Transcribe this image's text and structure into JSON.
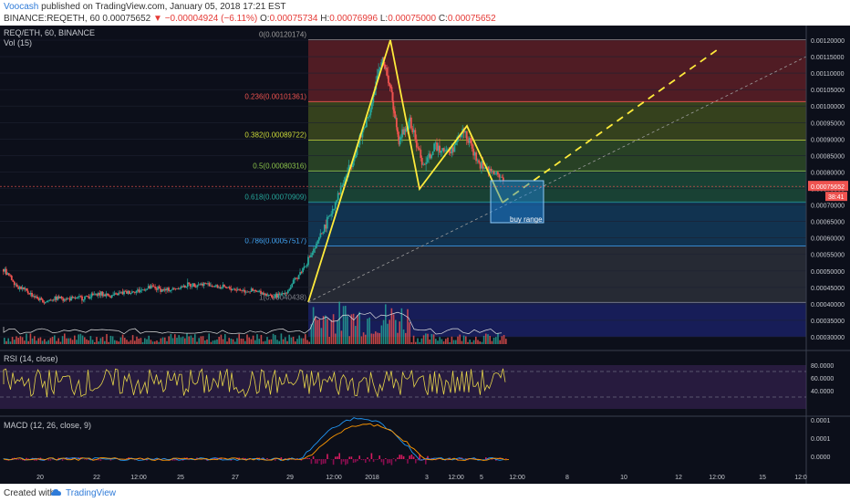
{
  "header": {
    "author": "Voocash",
    "published": "published on TradingView.com, January 05, 2018 17:21 EST",
    "symbol": "BINANCE:REQETH, 60",
    "last": "0.00075652",
    "arrow": "▼",
    "change": "−0.00004924 (−6.11%)",
    "o_label": "O:",
    "o": "0.00075734",
    "h_label": "H:",
    "h": "0.00076996",
    "l_label": "L:",
    "l": "0.00075000",
    "c_label": "C:",
    "c": "0.00075652"
  },
  "footer": {
    "created_with": "Created with",
    "brand": "TradingView"
  },
  "colors": {
    "up": "#26a69a",
    "down": "#ef5350",
    "bg": "#0c0f1a",
    "yellow": "#ffeb3b",
    "accent": "#2f7bd8"
  },
  "chart_data": {
    "type": "candlestick",
    "title": "REQ/ETH, 60, BINANCE",
    "volume_label": "Vol (15)",
    "price_axis_ticks": [
      "0.00120000",
      "0.00115000",
      "0.00110000",
      "0.00105000",
      "0.00100000",
      "0.00095000",
      "0.00090000",
      "0.00085000",
      "0.00080000",
      "0.00075000",
      "0.00070000",
      "0.00065000",
      "0.00060000",
      "0.00055000",
      "0.00050000",
      "0.00045000",
      "0.00040000",
      "0.00035000",
      "0.00030000"
    ],
    "last_price_label": "0.00075652",
    "countdown_label": "38:41",
    "time_axis_labels": [
      "20",
      "22",
      "12:00",
      "25",
      "27",
      "29",
      "12:00",
      "2018",
      "3",
      "12:00",
      "5",
      "12:00",
      "8",
      "10",
      "12",
      "12:00",
      "15",
      "12:0"
    ],
    "price_path": [
      {
        "t": 0,
        "p": 0.000505
      },
      {
        "t": 0.5,
        "p": 0.000455
      },
      {
        "t": 1,
        "p": 0.00043
      },
      {
        "t": 1.5,
        "p": 0.000405
      },
      {
        "t": 2,
        "p": 0.00042
      },
      {
        "t": 2.5,
        "p": 0.000415
      },
      {
        "t": 3,
        "p": 0.00042
      },
      {
        "t": 3.5,
        "p": 0.00043
      },
      {
        "t": 4,
        "p": 0.000425
      },
      {
        "t": 4.5,
        "p": 0.000435
      },
      {
        "t": 5,
        "p": 0.00044
      },
      {
        "t": 5.5,
        "p": 0.00045
      },
      {
        "t": 6,
        "p": 0.00044
      },
      {
        "t": 6.5,
        "p": 0.00045
      },
      {
        "t": 7,
        "p": 0.00046
      },
      {
        "t": 7.5,
        "p": 0.00046
      },
      {
        "t": 8,
        "p": 0.00045
      },
      {
        "t": 8.5,
        "p": 0.000445
      },
      {
        "t": 9,
        "p": 0.00044
      },
      {
        "t": 9.5,
        "p": 0.000435
      },
      {
        "t": 10,
        "p": 0.00042
      },
      {
        "t": 10.5,
        "p": 0.00044
      },
      {
        "t": 11,
        "p": 0.0005
      },
      {
        "t": 11.5,
        "p": 0.00057
      },
      {
        "t": 12,
        "p": 0.00066
      },
      {
        "t": 12.5,
        "p": 0.00076
      },
      {
        "t": 13,
        "p": 0.00086
      },
      {
        "t": 13.5,
        "p": 0.00098
      },
      {
        "t": 14,
        "p": 0.00115
      },
      {
        "t": 14.3,
        "p": 0.00105
      },
      {
        "t": 14.6,
        "p": 0.0009
      },
      {
        "t": 15,
        "p": 0.00095
      },
      {
        "t": 15.5,
        "p": 0.00082
      },
      {
        "t": 16,
        "p": 0.00088
      },
      {
        "t": 16.5,
        "p": 0.00086
      },
      {
        "t": 17,
        "p": 0.00093
      },
      {
        "t": 17.5,
        "p": 0.00083
      },
      {
        "t": 18,
        "p": 0.0008
      },
      {
        "t": 18.5,
        "p": 0.00078
      }
    ],
    "fib_levels": [
      {
        "ratio": "0",
        "price": "0.00120174",
        "label": "0(0.00120174)",
        "color": "#9e9e9e",
        "fill": "#5d1f27"
      },
      {
        "ratio": "0.236",
        "price": "0.00101361",
        "label": "0.236(0.00101361)",
        "color": "#ef5350",
        "fill": "#3d4a1e"
      },
      {
        "ratio": "0.382",
        "price": "0.00089722",
        "label": "0.382(0.00089722)",
        "color": "#cddc39",
        "fill": "#2e4a28"
      },
      {
        "ratio": "0.5",
        "price": "0.00080316",
        "label": "0.5(0.00080316)",
        "color": "#8bc34a",
        "fill": "#1c4a3a"
      },
      {
        "ratio": "0.618",
        "price": "0.00070909",
        "label": "0.618(0.00070909)",
        "color": "#26a69a",
        "fill": "#13395a"
      },
      {
        "ratio": "0.786",
        "price": "0.00057517",
        "label": "0.786(0.00057517)",
        "color": "#42a5f5",
        "fill": "#2b2f3a"
      },
      {
        "ratio": "1",
        "price": "0.00040438",
        "label": "1(0.00040438)",
        "color": "#7e8189",
        "fill": "#1a2064"
      }
    ],
    "annotations": {
      "buy_range": "buy range"
    },
    "rsi": {
      "label": "RSI (14, close)",
      "ticks": [
        "80.0000",
        "60.0000",
        "40.0000"
      ],
      "levels": [
        70,
        30
      ]
    },
    "macd": {
      "label": "MACD (12, 26, close, 9)",
      "ticks": [
        "0.0001",
        "0.0001",
        "0.0000"
      ]
    }
  }
}
